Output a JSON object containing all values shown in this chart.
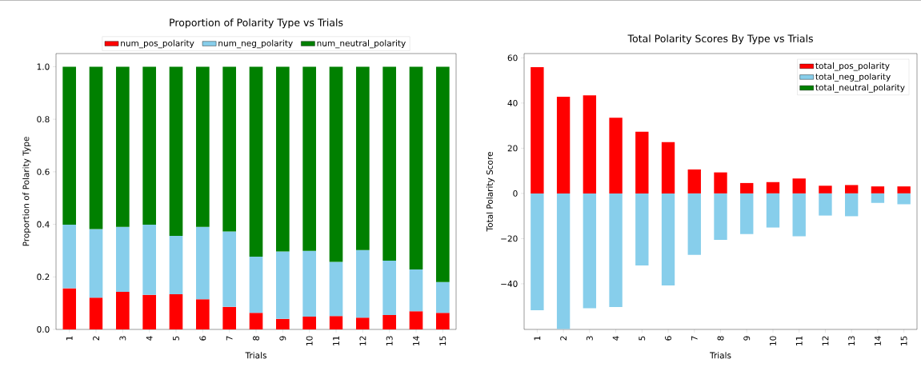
{
  "chart_data": [
    {
      "type": "bar",
      "title": "Proportion of Polarity Type vs Trials",
      "xlabel": "Trials",
      "ylabel": "Proportion of Polarity Type",
      "categories": [
        "1",
        "2",
        "3",
        "4",
        "5",
        "6",
        "7",
        "8",
        "9",
        "10",
        "11",
        "12",
        "13",
        "14",
        "15"
      ],
      "stacked": true,
      "legend": "top",
      "ylim": [
        0,
        1.05
      ],
      "yticks": [
        {
          "value": 0,
          "label": "0.0"
        },
        {
          "value": 0.2,
          "label": "0.2"
        },
        {
          "value": 0.4,
          "label": "0.4"
        },
        {
          "value": 0.6,
          "label": "0.6"
        },
        {
          "value": 0.8,
          "label": "0.8"
        },
        {
          "value": 1.0,
          "label": "1.0"
        }
      ],
      "series": [
        {
          "name": "num_pos_polarity",
          "color": "#ff0000",
          "values": [
            0.157,
            0.121,
            0.143,
            0.132,
            0.134,
            0.115,
            0.086,
            0.063,
            0.04,
            0.049,
            0.051,
            0.045,
            0.055,
            0.069,
            0.063
          ]
        },
        {
          "name": "num_neg_polarity",
          "color": "#87ceeb",
          "values": [
            0.242,
            0.261,
            0.247,
            0.267,
            0.222,
            0.275,
            0.287,
            0.214,
            0.257,
            0.25,
            0.206,
            0.257,
            0.207,
            0.159,
            0.117
          ]
        },
        {
          "name": "num_neutral_polarity",
          "color": "#008000",
          "values": [
            0.601,
            0.618,
            0.61,
            0.601,
            0.644,
            0.61,
            0.627,
            0.723,
            0.703,
            0.701,
            0.743,
            0.698,
            0.738,
            0.772,
            0.82
          ]
        }
      ]
    },
    {
      "type": "bar",
      "title": "Total Polarity Scores By Type vs Trials",
      "xlabel": "Trials",
      "ylabel": "Total Polarity Score",
      "categories": [
        "1",
        "2",
        "3",
        "4",
        "5",
        "6",
        "7",
        "8",
        "9",
        "10",
        "11",
        "12",
        "13",
        "14",
        "15"
      ],
      "stacked": true,
      "legend": "top right",
      "ylim": [
        -60.2,
        61.9
      ],
      "yticks": [
        {
          "value": -40,
          "label": "−40"
        },
        {
          "value": -20,
          "label": "−20"
        },
        0,
        20,
        40,
        60
      ],
      "series": [
        {
          "name": "total_pos_polarity",
          "color": "#ff0000",
          "values": [
            55.9,
            42.8,
            43.4,
            33.5,
            27.3,
            22.7,
            10.6,
            9.3,
            4.6,
            5.0,
            6.6,
            3.4,
            3.7,
            3.1,
            3.1
          ]
        },
        {
          "name": "total_neg_polarity",
          "color": "#87ceeb",
          "values": [
            -51.7,
            -60,
            -50.8,
            -50.3,
            -31.9,
            -40.7,
            -27.2,
            -20.6,
            -18.0,
            -15.1,
            -19.0,
            -9.8,
            -10.1,
            -4.2,
            -4.8
          ]
        },
        {
          "name": "total_neutral_polarity",
          "color": "#008000",
          "values": [
            0,
            0,
            0,
            0,
            0,
            0,
            0,
            0,
            0,
            0,
            0,
            0,
            0,
            0,
            0
          ]
        }
      ]
    }
  ]
}
